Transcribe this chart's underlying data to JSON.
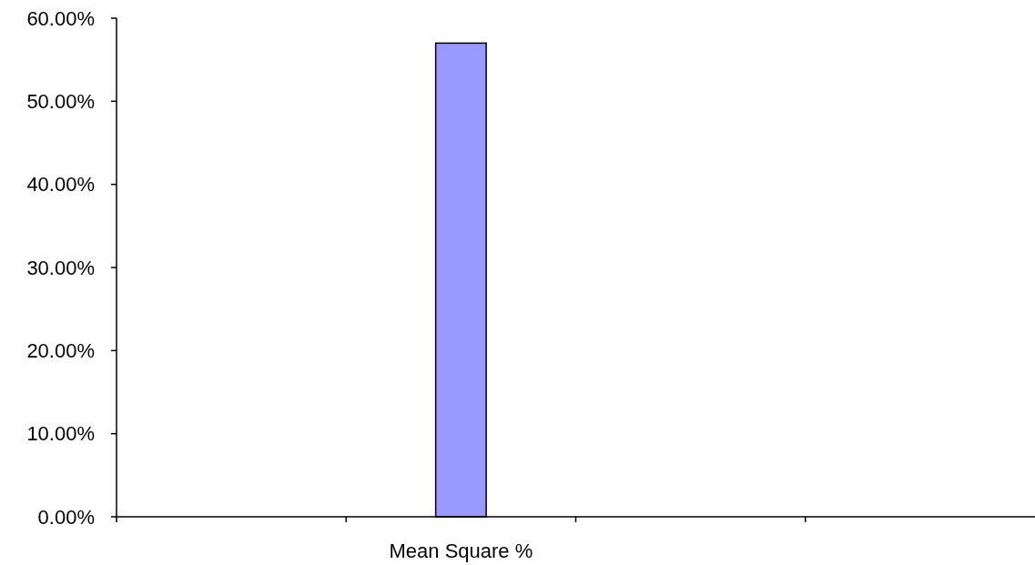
{
  "chart_data": {
    "type": "bar",
    "categories": [
      null,
      "Mean Square %",
      null,
      null
    ],
    "values": [
      null,
      57,
      null,
      null
    ],
    "color": "#9999ff",
    "ylim": [
      0,
      60
    ],
    "yticks": [
      {
        "value": 0,
        "label": "0.00%"
      },
      {
        "value": 10,
        "label": "10.00%"
      },
      {
        "value": 20,
        "label": "20.00%"
      },
      {
        "value": 30,
        "label": "30.00%"
      },
      {
        "value": 40,
        "label": "40.00%"
      },
      {
        "value": 50,
        "label": "50.00%"
      },
      {
        "value": 60,
        "label": "60.00%"
      }
    ],
    "grid": false
  }
}
